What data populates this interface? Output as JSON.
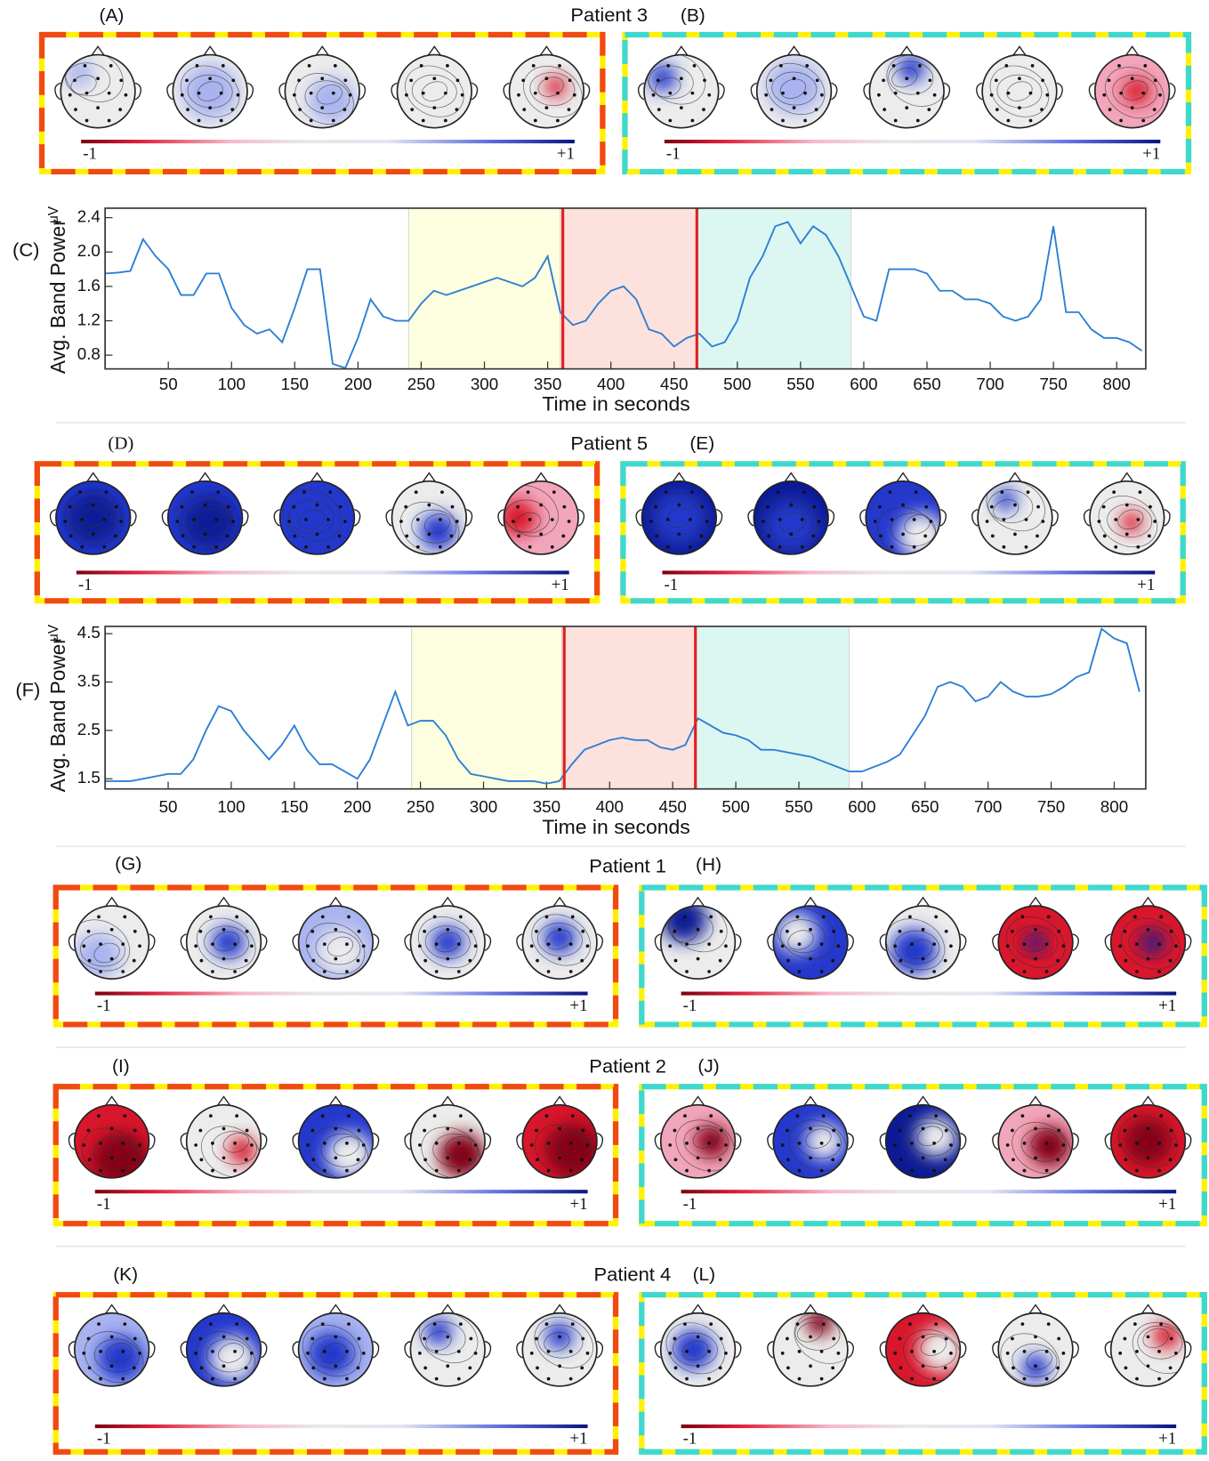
{
  "panels": [
    {
      "title": "Patient 3",
      "left": {
        "label": "(A)",
        "scale_min": "-1",
        "scale_max": "+1"
      },
      "right": {
        "label": "(B)",
        "scale_min": "-1",
        "scale_max": "+1"
      }
    },
    {
      "title": "Patient 5",
      "left": {
        "label": "(D)",
        "scale_min": "-1",
        "scale_max": "+1"
      },
      "right": {
        "label": "(E)",
        "scale_min": "-1",
        "scale_max": "+1"
      }
    },
    {
      "title": "Patient 1",
      "left": {
        "label": "(G)",
        "scale_min": "-1",
        "scale_max": "+1"
      },
      "right": {
        "label": "(H)",
        "scale_min": "-1",
        "scale_max": "+1"
      }
    },
    {
      "title": "Patient 2",
      "left": {
        "label": "(I)",
        "scale_min": "-1",
        "scale_max": "+1"
      },
      "right": {
        "label": "(J)",
        "scale_min": "-1",
        "scale_max": "+1"
      }
    },
    {
      "title": "Patient 4",
      "left": {
        "label": "(K)",
        "scale_min": "-1",
        "scale_max": "+1"
      },
      "right": {
        "label": "(L)",
        "scale_min": "-1",
        "scale_max": "+1"
      }
    }
  ],
  "chart_data": [
    {
      "type": "line",
      "label": "(C)",
      "ylabel": "Avg. Band Power",
      "yunit": "μV",
      "xlabel": "Time in seconds",
      "x": [
        0,
        10,
        20,
        30,
        40,
        50,
        60,
        70,
        80,
        90,
        100,
        110,
        120,
        130,
        140,
        150,
        160,
        170,
        180,
        190,
        200,
        210,
        220,
        230,
        240,
        250,
        260,
        270,
        280,
        290,
        300,
        310,
        320,
        330,
        340,
        350,
        360,
        370,
        380,
        390,
        400,
        410,
        420,
        430,
        440,
        450,
        460,
        470,
        480,
        490,
        500,
        510,
        520,
        530,
        540,
        550,
        560,
        570,
        580,
        590,
        600,
        610,
        620,
        630,
        640,
        650,
        660,
        670,
        680,
        690,
        700,
        710,
        720,
        730,
        740,
        750,
        760,
        770,
        780,
        790,
        800,
        810,
        820
      ],
      "series": [
        {
          "color": "#2a7fd4",
          "values": [
            1.75,
            1.76,
            1.78,
            2.15,
            1.95,
            1.8,
            1.5,
            1.5,
            1.75,
            1.75,
            1.35,
            1.15,
            1.05,
            1.1,
            0.95,
            1.35,
            1.8,
            1.8,
            0.7,
            0.65,
            1.0,
            1.45,
            1.25,
            1.2,
            1.2,
            1.4,
            1.55,
            1.5,
            1.55,
            1.6,
            1.65,
            1.7,
            1.65,
            1.6,
            1.7,
            1.95,
            1.3,
            1.15,
            1.2,
            1.4,
            1.55,
            1.6,
            1.45,
            1.1,
            1.05,
            0.9,
            1.0,
            1.05,
            0.9,
            0.95,
            1.2,
            1.7,
            1.95,
            2.3,
            2.35,
            2.1,
            2.3,
            2.2,
            1.95,
            1.6,
            1.25,
            1.2,
            1.8,
            1.8,
            1.8,
            1.75,
            1.55,
            1.55,
            1.45,
            1.45,
            1.4,
            1.25,
            1.2,
            1.25,
            1.45,
            2.3,
            1.3,
            1.3,
            1.1,
            1.0,
            1.0,
            0.95,
            0.85
          ]
        }
      ],
      "xlim": [
        0,
        823
      ],
      "ylim": [
        0.64,
        2.51
      ],
      "xticks": [
        50,
        100,
        150,
        200,
        250,
        300,
        350,
        400,
        450,
        500,
        550,
        600,
        650,
        700,
        750,
        800
      ],
      "yticks": [
        0.8,
        1.2,
        1.6,
        {
          "value": 2,
          "label": "2.0"
        },
        2.4
      ],
      "regions": [
        {
          "start": 240,
          "end": 360,
          "color": "#fdfde0"
        },
        {
          "start": 360,
          "end": 468,
          "color": "#fde1dd"
        },
        {
          "start": 468,
          "end": 590,
          "color": "#dcf6f1"
        }
      ],
      "vlines": [
        {
          "x": 362,
          "color": "#e02020"
        },
        {
          "x": 468,
          "color": "#e02020"
        }
      ]
    },
    {
      "type": "line",
      "label": "(F)",
      "ylabel": "Avg. Band Power",
      "yunit": "μV",
      "xlabel": "Time in seconds",
      "x": [
        0,
        10,
        20,
        30,
        40,
        50,
        60,
        70,
        80,
        90,
        100,
        110,
        120,
        130,
        140,
        150,
        160,
        170,
        180,
        190,
        200,
        210,
        220,
        230,
        240,
        250,
        260,
        270,
        280,
        290,
        300,
        310,
        320,
        330,
        340,
        350,
        360,
        370,
        380,
        390,
        400,
        410,
        420,
        430,
        440,
        450,
        460,
        470,
        480,
        490,
        500,
        510,
        520,
        530,
        540,
        550,
        560,
        570,
        580,
        590,
        600,
        610,
        620,
        630,
        640,
        650,
        660,
        670,
        680,
        690,
        700,
        710,
        720,
        730,
        740,
        750,
        760,
        770,
        780,
        790,
        800,
        810,
        820
      ],
      "series": [
        {
          "color": "#2a7fd4",
          "values": [
            1.45,
            1.45,
            1.45,
            1.5,
            1.55,
            1.6,
            1.6,
            1.9,
            2.5,
            3.0,
            2.9,
            2.5,
            2.2,
            1.9,
            2.2,
            2.6,
            2.1,
            1.8,
            1.8,
            1.65,
            1.5,
            1.9,
            2.6,
            3.3,
            2.6,
            2.7,
            2.7,
            2.4,
            1.9,
            1.6,
            1.55,
            1.5,
            1.45,
            1.45,
            1.45,
            1.4,
            1.45,
            1.8,
            2.1,
            2.2,
            2.3,
            2.35,
            2.3,
            2.3,
            2.15,
            2.1,
            2.2,
            2.75,
            2.6,
            2.45,
            2.4,
            2.3,
            2.1,
            2.1,
            2.05,
            2.0,
            1.95,
            1.85,
            1.75,
            1.65,
            1.65,
            1.75,
            1.85,
            2.0,
            2.4,
            2.8,
            3.4,
            3.5,
            3.4,
            3.1,
            3.2,
            3.5,
            3.3,
            3.2,
            3.2,
            3.25,
            3.4,
            3.6,
            3.7,
            4.6,
            4.4,
            4.3,
            3.3
          ]
        }
      ],
      "xlim": [
        0,
        825
      ],
      "ylim": [
        1.29,
        4.65
      ],
      "xticks": [
        50,
        100,
        150,
        200,
        250,
        300,
        350,
        400,
        450,
        500,
        550,
        600,
        650,
        700,
        750,
        800
      ],
      "yticks": [
        1.5,
        2.5,
        3.5,
        4.5
      ],
      "regions": [
        {
          "start": 243,
          "end": 362,
          "color": "#fdfde0"
        },
        {
          "start": 362,
          "end": 468,
          "color": "#fde1dd"
        },
        {
          "start": 468,
          "end": 590,
          "color": "#dcf6f1"
        }
      ],
      "vlines": [
        {
          "x": 364,
          "color": "#e02020"
        },
        {
          "x": 468,
          "color": "#e02020"
        }
      ]
    }
  ]
}
